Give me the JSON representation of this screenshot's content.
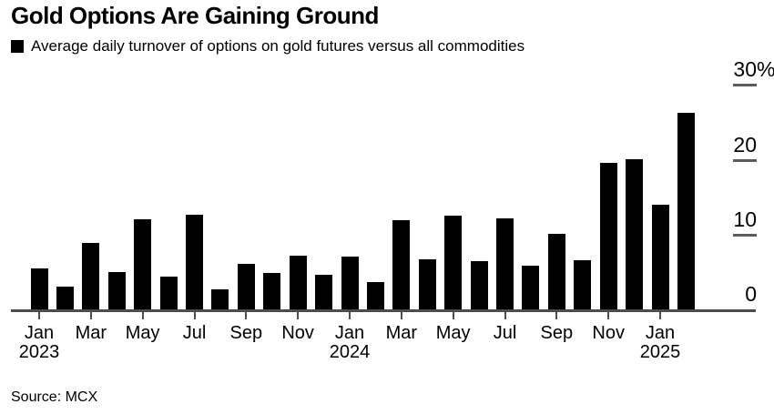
{
  "header": {
    "title": "Gold Options Are Gaining Ground"
  },
  "legend": {
    "marker_color": "#000000",
    "label": "Average daily turnover of options on gold futures versus all commodities"
  },
  "footer": {
    "source": "Source: MCX"
  },
  "chart_data": {
    "type": "bar",
    "title": "Gold Options Are Gaining Ground",
    "series_name": "Average daily turnover of options on gold futures versus all commodities",
    "unit": "%",
    "bar_color": "#000000",
    "axis_color": "#4d4d4d",
    "background_color": "#ffffff",
    "xlabel": "",
    "ylabel": "",
    "ylim": [
      0,
      30
    ],
    "grid": false,
    "y_axis_position": "right",
    "legend_position": "top-left",
    "source": "Source: MCX",
    "categories": [
      "Jan 2023",
      "Feb 2023",
      "Mar 2023",
      "Apr 2023",
      "May 2023",
      "Jun 2023",
      "Jul 2023",
      "Aug 2023",
      "Sep 2023",
      "Oct 2023",
      "Nov 2023",
      "Dec 2023",
      "Jan 2024",
      "Feb 2024",
      "Mar 2024",
      "Apr 2024",
      "May 2024",
      "Jun 2024",
      "Jul 2024",
      "Aug 2024",
      "Sep 2024",
      "Oct 2024",
      "Nov 2024",
      "Dec 2024",
      "Jan 2025",
      "Feb 2025"
    ],
    "values": [
      5.5,
      3.0,
      8.9,
      5.0,
      12.0,
      4.4,
      12.6,
      2.7,
      6.1,
      4.9,
      7.2,
      4.6,
      7.1,
      3.6,
      11.9,
      6.7,
      12.5,
      6.4,
      12.2,
      5.8,
      10.1,
      6.6,
      19.6,
      20.1,
      14.0,
      26.3
    ],
    "y_ticks": [
      {
        "value": 30,
        "num": "30",
        "suffix": "%"
      },
      {
        "value": 20,
        "num": "20",
        "suffix": ""
      },
      {
        "value": 10,
        "num": "10",
        "suffix": ""
      },
      {
        "value": 0,
        "num": "0",
        "suffix": ""
      }
    ],
    "x_ticks": [
      {
        "index": 0,
        "label": "Jan",
        "year": "2023"
      },
      {
        "index": 2,
        "label": "Mar"
      },
      {
        "index": 4,
        "label": "May"
      },
      {
        "index": 6,
        "label": "Jul"
      },
      {
        "index": 8,
        "label": "Sep"
      },
      {
        "index": 10,
        "label": "Nov"
      },
      {
        "index": 12,
        "label": "Jan",
        "year": "2024"
      },
      {
        "index": 14,
        "label": "Mar"
      },
      {
        "index": 16,
        "label": "May"
      },
      {
        "index": 18,
        "label": "Jul"
      },
      {
        "index": 20,
        "label": "Sep"
      },
      {
        "index": 22,
        "label": "Nov"
      },
      {
        "index": 24,
        "label": "Jan",
        "year": "2025"
      }
    ]
  }
}
